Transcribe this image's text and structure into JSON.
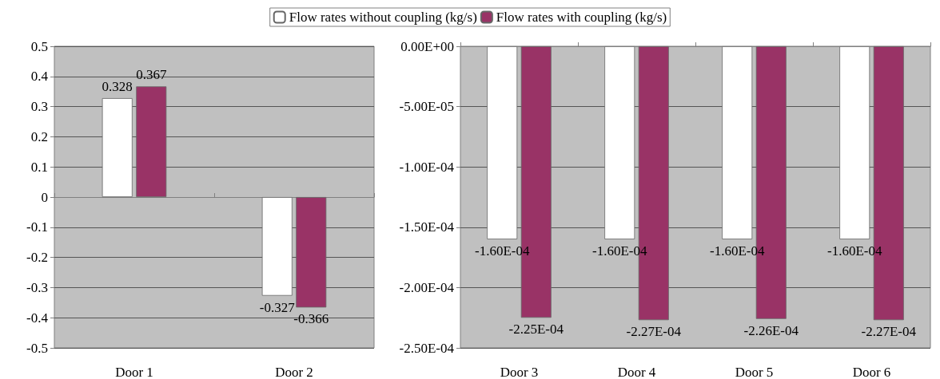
{
  "chart_data": [
    {
      "type": "bar",
      "categories": [
        "Door 1",
        "Door 2"
      ],
      "series": [
        {
          "name": "Flow rates without coupling (kg/s)",
          "color": "#ffffff",
          "values": [
            0.328,
            -0.327
          ]
        },
        {
          "name": "Flow rates with coupling (kg/s)",
          "color": "#993366",
          "values": [
            0.367,
            -0.366
          ]
        }
      ],
      "ylim": [
        -0.5,
        0.5
      ],
      "yticks": [
        -0.5,
        -0.4,
        -0.3,
        -0.2,
        -0.1,
        0,
        0.1,
        0.2,
        0.3,
        0.4,
        0.5
      ],
      "grid": "y",
      "legend": "top",
      "data_labels": true
    },
    {
      "type": "bar",
      "categories": [
        "Door 3",
        "Door 4",
        "Door 5",
        "Door 6"
      ],
      "series": [
        {
          "color": "#ffffff",
          "values": [
            -0.00016,
            -0.00016,
            -0.00016,
            -0.00016
          ],
          "value_labels": [
            "-1.60E-04",
            "-1.60E-04",
            "-1.60E-04",
            "-1.60E-04"
          ]
        },
        {
          "color": "#993366",
          "values": [
            -0.000225,
            -0.000227,
            -0.000226,
            -0.000227
          ],
          "value_labels": [
            "-2.25E-04",
            "-2.27E-04",
            "-2.26E-04",
            "-2.27E-04"
          ]
        }
      ],
      "ylim": [
        -0.00025,
        0
      ],
      "yticks": [
        {
          "value": -0.00025,
          "label": "-2.50E-04"
        },
        {
          "value": -0.0002,
          "label": "-2.00E-04"
        },
        {
          "value": -0.00015,
          "label": "-1.50E-04"
        },
        {
          "value": -0.0001,
          "label": "-1.00E-04"
        },
        {
          "value": -5e-05,
          "label": "-5.00E-05"
        },
        {
          "value": 0,
          "label": "0.00E+00"
        }
      ],
      "grid": "y"
    }
  ]
}
